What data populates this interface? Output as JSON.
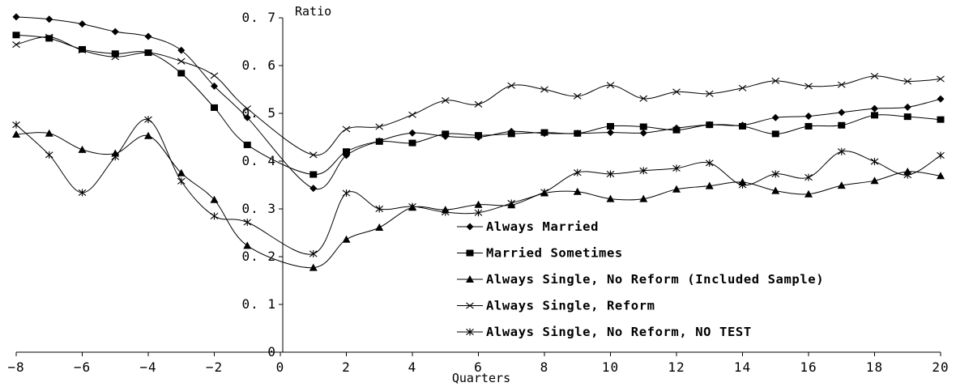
{
  "chart_data": {
    "type": "line",
    "xlabel": "Quarters",
    "ylabel": "Ratio",
    "xlim": [
      -8,
      20
    ],
    "ylim": [
      0,
      0.7
    ],
    "xticks": [
      -8,
      -6,
      -4,
      -2,
      0,
      2,
      4,
      6,
      8,
      10,
      12,
      14,
      16,
      18,
      20
    ],
    "yticks": [
      0,
      0.1,
      0.2,
      0.3,
      0.4,
      0.5,
      0.6,
      0.7
    ],
    "ytick_labels": [
      "0",
      "0. 1",
      "0. 2",
      "0. 3",
      "0. 4",
      "0. 5",
      "0. 6",
      "0. 7"
    ],
    "grid": false,
    "legend_position": "lower-right",
    "x": [
      -8,
      -7,
      -6,
      -5,
      -4,
      -3,
      -2,
      -1,
      1,
      2,
      3,
      4,
      5,
      6,
      7,
      8,
      9,
      10,
      11,
      12,
      13,
      14,
      15,
      16,
      17,
      18,
      19,
      20
    ],
    "series": [
      {
        "name": "Always Married",
        "marker": "diamond",
        "values": [
          0.702,
          0.697,
          0.687,
          0.671,
          0.661,
          0.632,
          0.557,
          0.491,
          0.343,
          0.412,
          0.442,
          0.459,
          0.452,
          0.45,
          0.462,
          0.458,
          0.458,
          0.46,
          0.459,
          0.469,
          0.476,
          0.475,
          0.491,
          0.494,
          0.502,
          0.51,
          0.513,
          0.53
        ]
      },
      {
        "name": "Married Sometimes",
        "marker": "square",
        "values": [
          0.664,
          0.657,
          0.634,
          0.625,
          0.627,
          0.584,
          0.512,
          0.434,
          0.372,
          0.42,
          0.441,
          0.438,
          0.457,
          0.454,
          0.457,
          0.46,
          0.458,
          0.473,
          0.472,
          0.465,
          0.476,
          0.473,
          0.457,
          0.473,
          0.475,
          0.496,
          0.493,
          0.487
        ]
      },
      {
        "name": "Always Single, No Reform (Included Sample)",
        "marker": "triangle",
        "values": [
          0.456,
          0.458,
          0.424,
          0.416,
          0.453,
          0.375,
          0.319,
          0.223,
          0.177,
          0.236,
          0.261,
          0.303,
          0.298,
          0.309,
          0.308,
          0.333,
          0.336,
          0.321,
          0.321,
          0.341,
          0.348,
          0.356,
          0.338,
          0.331,
          0.349,
          0.359,
          0.378,
          0.369
        ]
      },
      {
        "name": "Always Single, Reform",
        "marker": "x",
        "values": [
          0.644,
          0.66,
          0.632,
          0.618,
          0.627,
          0.609,
          0.579,
          0.51,
          0.413,
          0.467,
          0.472,
          0.497,
          0.527,
          0.519,
          0.558,
          0.55,
          0.536,
          0.559,
          0.531,
          0.545,
          0.541,
          0.553,
          0.568,
          0.557,
          0.56,
          0.578,
          0.567,
          0.572
        ]
      },
      {
        "name": "Always Single, No Reform, NO TEST",
        "marker": "asterisk",
        "values": [
          0.476,
          0.413,
          0.334,
          0.409,
          0.487,
          0.358,
          0.285,
          0.272,
          0.206,
          0.333,
          0.3,
          0.305,
          0.293,
          0.292,
          0.312,
          0.335,
          0.376,
          0.373,
          0.38,
          0.385,
          0.396,
          0.35,
          0.373,
          0.366,
          0.42,
          0.399,
          0.371,
          0.412
        ]
      }
    ]
  }
}
